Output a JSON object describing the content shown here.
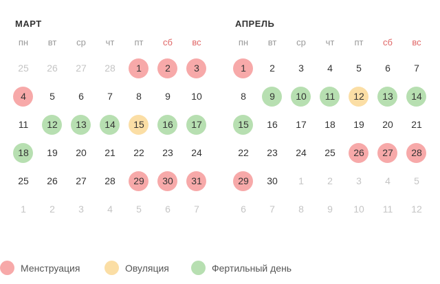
{
  "colors": {
    "menstruation": "#f7a9a9",
    "ovulation": "#fbdea5",
    "fertile": "#b7dfb1",
    "weekend_header": "#e06666",
    "muted_day": "#c4c4c4"
  },
  "weekdays": [
    "пн",
    "вт",
    "ср",
    "чт",
    "пт",
    "сб",
    "вс"
  ],
  "months": [
    {
      "title": "МАРТ",
      "weeks": [
        [
          {
            "d": "25",
            "muted": true
          },
          {
            "d": "26",
            "muted": true
          },
          {
            "d": "27",
            "muted": true
          },
          {
            "d": "28",
            "muted": true
          },
          {
            "d": "1",
            "mark": "menstruation"
          },
          {
            "d": "2",
            "mark": "menstruation"
          },
          {
            "d": "3",
            "mark": "menstruation"
          }
        ],
        [
          {
            "d": "4",
            "mark": "menstruation"
          },
          {
            "d": "5"
          },
          {
            "d": "6"
          },
          {
            "d": "7"
          },
          {
            "d": "8"
          },
          {
            "d": "9"
          },
          {
            "d": "10"
          }
        ],
        [
          {
            "d": "11"
          },
          {
            "d": "12",
            "mark": "fertile"
          },
          {
            "d": "13",
            "mark": "fertile"
          },
          {
            "d": "14",
            "mark": "fertile"
          },
          {
            "d": "15",
            "mark": "ovulation"
          },
          {
            "d": "16",
            "mark": "fertile"
          },
          {
            "d": "17",
            "mark": "fertile"
          }
        ],
        [
          {
            "d": "18",
            "mark": "fertile"
          },
          {
            "d": "19"
          },
          {
            "d": "20"
          },
          {
            "d": "21"
          },
          {
            "d": "22"
          },
          {
            "d": "23"
          },
          {
            "d": "24"
          }
        ],
        [
          {
            "d": "25"
          },
          {
            "d": "26"
          },
          {
            "d": "27"
          },
          {
            "d": "28"
          },
          {
            "d": "29",
            "mark": "menstruation"
          },
          {
            "d": "30",
            "mark": "menstruation"
          },
          {
            "d": "31",
            "mark": "menstruation"
          }
        ],
        [
          {
            "d": "1",
            "muted": true
          },
          {
            "d": "2",
            "muted": true
          },
          {
            "d": "3",
            "muted": true
          },
          {
            "d": "4",
            "muted": true
          },
          {
            "d": "5",
            "muted": true
          },
          {
            "d": "6",
            "muted": true
          },
          {
            "d": "7",
            "muted": true
          }
        ]
      ]
    },
    {
      "title": "АПРЕЛЬ",
      "weeks": [
        [
          {
            "d": "1",
            "mark": "menstruation"
          },
          {
            "d": "2"
          },
          {
            "d": "3"
          },
          {
            "d": "4"
          },
          {
            "d": "5"
          },
          {
            "d": "6"
          },
          {
            "d": "7"
          }
        ],
        [
          {
            "d": "8"
          },
          {
            "d": "9",
            "mark": "fertile"
          },
          {
            "d": "10",
            "mark": "fertile"
          },
          {
            "d": "11",
            "mark": "fertile"
          },
          {
            "d": "12",
            "mark": "ovulation"
          },
          {
            "d": "13",
            "mark": "fertile"
          },
          {
            "d": "14",
            "mark": "fertile"
          }
        ],
        [
          {
            "d": "15",
            "mark": "fertile"
          },
          {
            "d": "16"
          },
          {
            "d": "17"
          },
          {
            "d": "18"
          },
          {
            "d": "19"
          },
          {
            "d": "20"
          },
          {
            "d": "21"
          }
        ],
        [
          {
            "d": "22"
          },
          {
            "d": "23"
          },
          {
            "d": "24"
          },
          {
            "d": "25"
          },
          {
            "d": "26",
            "mark": "menstruation"
          },
          {
            "d": "27",
            "mark": "menstruation"
          },
          {
            "d": "28",
            "mark": "menstruation"
          }
        ],
        [
          {
            "d": "29",
            "mark": "menstruation"
          },
          {
            "d": "30"
          },
          {
            "d": "1",
            "muted": true
          },
          {
            "d": "2",
            "muted": true
          },
          {
            "d": "3",
            "muted": true
          },
          {
            "d": "4",
            "muted": true
          },
          {
            "d": "5",
            "muted": true
          }
        ],
        [
          {
            "d": "6",
            "muted": true
          },
          {
            "d": "7",
            "muted": true
          },
          {
            "d": "8",
            "muted": true
          },
          {
            "d": "9",
            "muted": true
          },
          {
            "d": "10",
            "muted": true
          },
          {
            "d": "11",
            "muted": true
          },
          {
            "d": "12",
            "muted": true
          }
        ]
      ]
    }
  ],
  "legend": [
    {
      "type": "menstruation",
      "label": "Менструация"
    },
    {
      "type": "ovulation",
      "label": "Овуляция"
    },
    {
      "type": "fertile",
      "label": "Фертильный день"
    }
  ]
}
